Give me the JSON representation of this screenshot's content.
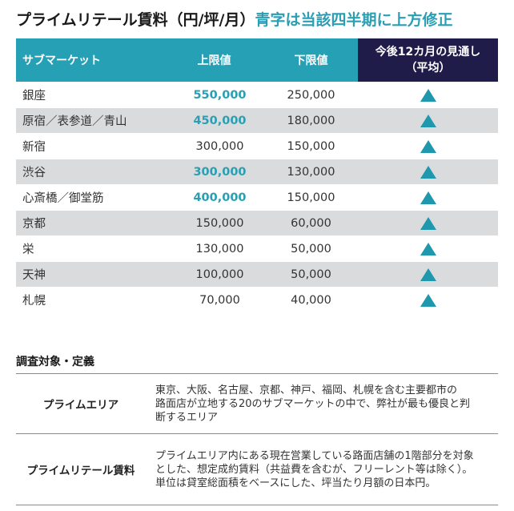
{
  "title": {
    "main": "プライムリテール賃料（円/坪/月）",
    "accent": "青字は当該四半期に上方修正"
  },
  "table": {
    "headers": {
      "submarket": "サブマーケット",
      "upper": "上限値",
      "lower": "下限値",
      "outlook_line1": "今後12カ月の見通し",
      "outlook_line2": "（平均）"
    },
    "rows": [
      {
        "area": "銀座",
        "upper": "550,000",
        "lower": "250,000",
        "revised": true,
        "outlook": "up"
      },
      {
        "area": "原宿／表参道／青山",
        "upper": "450,000",
        "lower": "180,000",
        "revised": true,
        "outlook": "up"
      },
      {
        "area": "新宿",
        "upper": "300,000",
        "lower": "150,000",
        "revised": false,
        "outlook": "up"
      },
      {
        "area": "渋谷",
        "upper": "300,000",
        "lower": "130,000",
        "revised": true,
        "outlook": "up"
      },
      {
        "area": "心斎橋／御堂筋",
        "upper": "400,000",
        "lower": "150,000",
        "revised": true,
        "outlook": "up"
      },
      {
        "area": "京都",
        "upper": "150,000",
        "lower": "60,000",
        "revised": false,
        "outlook": "up"
      },
      {
        "area": "栄",
        "upper": "130,000",
        "lower": "50,000",
        "revised": false,
        "outlook": "up"
      },
      {
        "area": "天神",
        "upper": "100,000",
        "lower": "50,000",
        "revised": false,
        "outlook": "up"
      },
      {
        "area": "札幌",
        "upper": "70,000",
        "lower": "40,000",
        "revised": false,
        "outlook": "up"
      }
    ]
  },
  "definitions": {
    "heading": "調査対象・定義",
    "items": [
      {
        "term": "プライムエリア",
        "lines": [
          "東京、大阪、名古屋、京都、神戸、福岡、札幌を含む主要都市の",
          "路面店が立地する20のサブマーケットの中で、弊社が最も優良と判",
          "断するエリア"
        ]
      },
      {
        "term": "プライムリテール賃料",
        "lines": [
          "プライムエリア内にある現在営業している路面店舗の1階部分を対象",
          "とした、想定成約賃料（共益費を含むが、フリーレント等は除く）。",
          "単位は貸室総面積をベースにした、坪当たり月額の日本円。"
        ]
      }
    ]
  },
  "colors": {
    "accent_teal": "#25a0b5",
    "revised_text": "#2a9fb4",
    "outlook_header": "#1f1c4a",
    "row_alt": "#dadbdd",
    "triangle": "#1f97ad"
  },
  "icons": {
    "outlook_up": "triangle-up-icon"
  }
}
